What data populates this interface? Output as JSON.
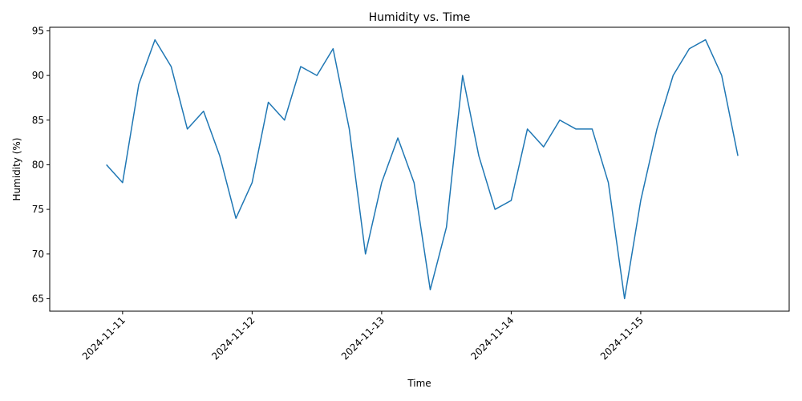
{
  "chart_data": {
    "type": "line",
    "title": "Humidity vs. Time",
    "xlabel": "Time",
    "ylabel": "Humidity (%)",
    "x_tick_labels": [
      "2024-11-11",
      "2024-11-12",
      "2024-11-13",
      "2024-11-14",
      "2024-11-15"
    ],
    "y_ticks": [
      65,
      70,
      75,
      80,
      85,
      90,
      95
    ],
    "ylim": [
      63.6,
      95.4
    ],
    "xlim": [
      "2024-11-10 10:30",
      "2024-11-16 03:30"
    ],
    "grid": false,
    "line_color": "#1f77b4",
    "x": [
      "2024-11-10 21:00",
      "2024-11-11 00:00",
      "2024-11-11 03:00",
      "2024-11-11 06:00",
      "2024-11-11 09:00",
      "2024-11-11 12:00",
      "2024-11-11 15:00",
      "2024-11-11 18:00",
      "2024-11-11 21:00",
      "2024-11-12 00:00",
      "2024-11-12 03:00",
      "2024-11-12 06:00",
      "2024-11-12 09:00",
      "2024-11-12 12:00",
      "2024-11-12 15:00",
      "2024-11-12 18:00",
      "2024-11-12 21:00",
      "2024-11-13 00:00",
      "2024-11-13 03:00",
      "2024-11-13 06:00",
      "2024-11-13 09:00",
      "2024-11-13 12:00",
      "2024-11-13 15:00",
      "2024-11-13 18:00",
      "2024-11-13 21:00",
      "2024-11-14 00:00",
      "2024-11-14 03:00",
      "2024-11-14 06:00",
      "2024-11-14 09:00",
      "2024-11-14 12:00",
      "2024-11-14 15:00",
      "2024-11-14 18:00",
      "2024-11-14 21:00",
      "2024-11-15 00:00",
      "2024-11-15 03:00",
      "2024-11-15 06:00",
      "2024-11-15 09:00",
      "2024-11-15 12:00",
      "2024-11-15 15:00",
      "2024-11-15 18:00"
    ],
    "values": [
      80,
      78,
      89,
      94,
      91,
      84,
      86,
      81,
      74,
      78,
      87,
      85,
      91,
      90,
      93,
      84,
      70,
      78,
      83,
      78,
      66,
      73,
      90,
      81,
      75,
      76,
      84,
      82,
      85,
      84,
      84,
      78,
      65,
      76,
      84,
      90,
      93,
      94,
      90,
      81
    ]
  }
}
